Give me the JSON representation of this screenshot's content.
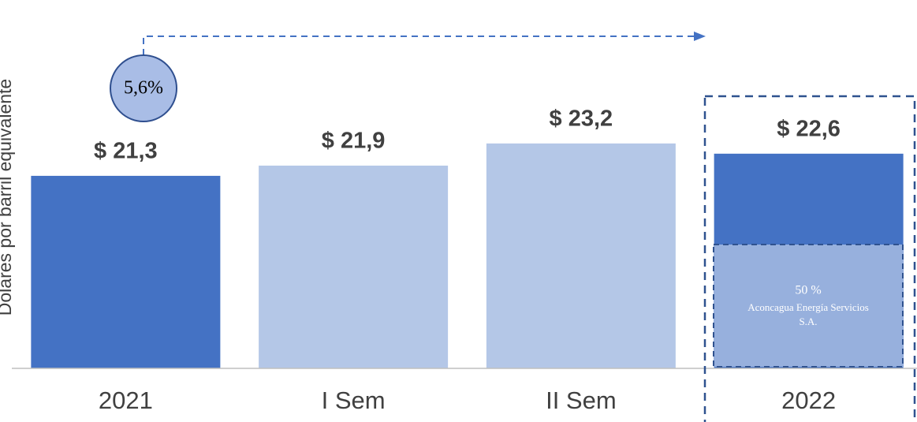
{
  "chart_data": {
    "type": "bar",
    "y_label": "Dolares por barril equivalente",
    "categories": [
      "2021",
      "I Sem",
      "II Sem",
      "2022"
    ],
    "values": [
      21.3,
      21.9,
      23.2,
      22.6
    ],
    "value_labels": [
      "$ 21,3",
      "$ 21,9",
      "$ 23,2",
      "$ 22,6"
    ],
    "colors": [
      "#4472c4",
      "#b4c7e7",
      "#b4c7e7",
      "#4472c4"
    ],
    "ylim": [
      10,
      30
    ],
    "annotations": {
      "growth": "5,6%",
      "share": "50 %",
      "company": [
        "Aconcagua Energía Servicios",
        "S.A."
      ]
    }
  }
}
